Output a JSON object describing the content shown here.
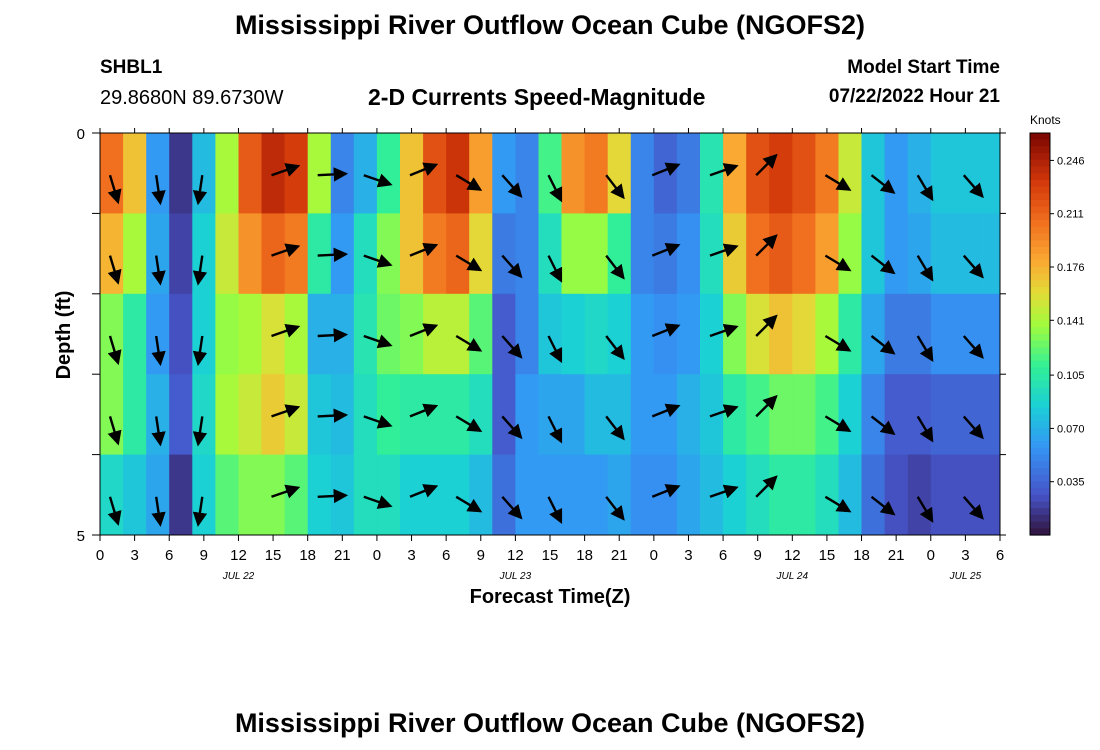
{
  "title": "Mississippi River Outflow Ocean Cube (NGOFS2)",
  "station": "SHBL1",
  "coords": "29.8680N  89.6730W",
  "subtitle": "2-D Currents Speed-Magnitude",
  "model_start_label": "Model Start Time",
  "model_start_value": "07/22/2022 Hour 21",
  "chart_data": {
    "type": "heatmap",
    "xlabel": "Forecast Time(Z)",
    "ylabel": "Depth (ft)",
    "ylim": [
      0,
      5
    ],
    "y_ticks": [
      "0",
      "5"
    ],
    "x_tick_labels": [
      "0",
      "3",
      "6",
      "9",
      "12",
      "15",
      "18",
      "21",
      "0",
      "3",
      "6",
      "9",
      "12",
      "15",
      "18",
      "21",
      "0",
      "3",
      "6",
      "9",
      "12",
      "15",
      "18",
      "21",
      "0",
      "3",
      "6"
    ],
    "date_labels": [
      {
        "label": "JUL 22",
        "tick_index": 4
      },
      {
        "label": "JUL 23",
        "tick_index": 12
      },
      {
        "label": "JUL 24",
        "tick_index": 20
      },
      {
        "label": "JUL 25",
        "tick_index": 25
      }
    ],
    "colorbar": {
      "unit": "Knots",
      "ticks": [
        "0.246",
        "0.211",
        "0.176",
        "0.141",
        "0.105",
        "0.070",
        "0.035"
      ],
      "tick_values": [
        0.246,
        0.211,
        0.176,
        0.141,
        0.105,
        0.07,
        0.035
      ],
      "range": [
        0.0,
        0.264
      ]
    },
    "hours": [
      0,
      2,
      4,
      6,
      8,
      10,
      12,
      14,
      16,
      18,
      20,
      22,
      24,
      26,
      28,
      30,
      32,
      34,
      36,
      38,
      40,
      42,
      44,
      46,
      48,
      50,
      52,
      54,
      56,
      58,
      60,
      62,
      64,
      66,
      68,
      70,
      72,
      74,
      76,
      78
    ],
    "depth_layers": 5,
    "speed": [
      [
        0.22,
        0.19,
        0.19,
        0.16,
        0.14,
        0.12,
        0.14,
        0.12,
        0.1,
        0.08
      ],
      [
        0.18,
        0.16,
        0.15,
        0.13,
        0.11,
        0.1,
        0.11,
        0.1,
        0.09,
        0.07
      ],
      [
        0.06,
        0.06,
        0.07,
        0.06,
        0.06,
        0.06,
        0.07,
        0.07,
        0.07,
        0.06
      ],
      [
        0.01,
        0.02,
        0.02,
        0.02,
        0.02,
        0.03,
        0.03,
        0.03,
        0.02,
        0.01
      ],
      [
        0.07,
        0.08,
        0.08,
        0.09,
        0.09,
        0.08,
        0.09,
        0.09,
        0.09,
        0.08
      ],
      [
        0.14,
        0.14,
        0.15,
        0.15,
        0.14,
        0.13,
        0.14,
        0.14,
        0.13,
        0.11
      ],
      [
        0.22,
        0.21,
        0.2,
        0.18,
        0.15,
        0.13,
        0.15,
        0.15,
        0.14,
        0.12
      ],
      [
        0.25,
        0.23,
        0.22,
        0.2,
        0.17,
        0.14,
        0.17,
        0.16,
        0.14,
        0.12
      ],
      [
        0.24,
        0.22,
        0.21,
        0.19,
        0.16,
        0.12,
        0.15,
        0.15,
        0.13,
        0.11
      ],
      [
        0.16,
        0.12,
        0.11,
        0.1,
        0.08,
        0.06,
        0.07,
        0.09,
        0.09,
        0.08
      ],
      [
        0.05,
        0.05,
        0.06,
        0.06,
        0.07,
        0.07,
        0.07,
        0.08,
        0.08,
        0.08
      ],
      [
        0.06,
        0.08,
        0.09,
        0.1,
        0.1,
        0.1,
        0.09,
        0.1,
        0.1,
        0.09
      ],
      [
        0.1,
        0.12,
        0.13,
        0.13,
        0.13,
        0.12,
        0.11,
        0.11,
        0.1,
        0.09
      ],
      [
        0.16,
        0.18,
        0.18,
        0.16,
        0.14,
        0.12,
        0.11,
        0.1,
        0.09,
        0.08
      ],
      [
        0.22,
        0.22,
        0.21,
        0.19,
        0.16,
        0.13,
        0.11,
        0.1,
        0.09,
        0.08
      ],
      [
        0.24,
        0.23,
        0.22,
        0.2,
        0.16,
        0.13,
        0.11,
        0.1,
        0.09,
        0.08
      ],
      [
        0.19,
        0.18,
        0.17,
        0.15,
        0.13,
        0.11,
        0.1,
        0.09,
        0.08,
        0.07
      ],
      [
        0.06,
        0.06,
        0.05,
        0.04,
        0.03,
        0.03,
        0.03,
        0.03,
        0.04,
        0.04
      ],
      [
        0.05,
        0.05,
        0.05,
        0.05,
        0.05,
        0.05,
        0.06,
        0.06,
        0.06,
        0.06
      ],
      [
        0.12,
        0.11,
        0.1,
        0.09,
        0.08,
        0.08,
        0.07,
        0.06,
        0.06,
        0.06
      ],
      [
        0.2,
        0.18,
        0.15,
        0.12,
        0.09,
        0.08,
        0.07,
        0.06,
        0.06,
        0.06
      ],
      [
        0.21,
        0.19,
        0.15,
        0.12,
        0.1,
        0.08,
        0.08,
        0.07,
        0.06,
        0.06
      ],
      [
        0.17,
        0.15,
        0.12,
        0.1,
        0.09,
        0.08,
        0.08,
        0.07,
        0.07,
        0.06
      ],
      [
        0.05,
        0.05,
        0.05,
        0.05,
        0.06,
        0.06,
        0.06,
        0.06,
        0.06,
        0.05
      ],
      [
        0.03,
        0.04,
        0.04,
        0.05,
        0.05,
        0.06,
        0.06,
        0.06,
        0.06,
        0.05
      ],
      [
        0.04,
        0.05,
        0.05,
        0.06,
        0.06,
        0.06,
        0.07,
        0.07,
        0.07,
        0.06
      ],
      [
        0.1,
        0.1,
        0.1,
        0.09,
        0.09,
        0.08,
        0.08,
        0.08,
        0.08,
        0.07
      ],
      [
        0.18,
        0.18,
        0.17,
        0.16,
        0.14,
        0.12,
        0.11,
        0.1,
        0.09,
        0.08
      ],
      [
        0.22,
        0.22,
        0.21,
        0.2,
        0.17,
        0.14,
        0.12,
        0.11,
        0.1,
        0.09
      ],
      [
        0.23,
        0.23,
        0.22,
        0.21,
        0.18,
        0.16,
        0.13,
        0.12,
        0.11,
        0.1
      ],
      [
        0.22,
        0.22,
        0.21,
        0.2,
        0.17,
        0.15,
        0.13,
        0.12,
        0.11,
        0.1
      ],
      [
        0.2,
        0.2,
        0.19,
        0.18,
        0.15,
        0.13,
        0.12,
        0.11,
        0.1,
        0.09
      ],
      [
        0.15,
        0.15,
        0.14,
        0.13,
        0.11,
        0.1,
        0.09,
        0.08,
        0.08,
        0.07
      ],
      [
        0.08,
        0.08,
        0.08,
        0.08,
        0.07,
        0.06,
        0.05,
        0.05,
        0.04,
        0.04
      ],
      [
        0.06,
        0.06,
        0.06,
        0.06,
        0.05,
        0.04,
        0.03,
        0.03,
        0.03,
        0.02
      ],
      [
        0.07,
        0.07,
        0.07,
        0.06,
        0.05,
        0.04,
        0.03,
        0.03,
        0.02,
        0.02
      ],
      [
        0.08,
        0.08,
        0.08,
        0.07,
        0.06,
        0.05,
        0.04,
        0.03,
        0.03,
        0.02
      ],
      [
        0.08,
        0.08,
        0.08,
        0.07,
        0.06,
        0.05,
        0.04,
        0.03,
        0.03,
        0.02
      ],
      [
        0.08,
        0.08,
        0.08,
        0.07,
        0.06,
        0.05,
        0.04,
        0.03,
        0.03,
        0.02
      ],
      [
        0.08,
        0.08,
        0.08,
        0.07,
        0.06,
        0.05,
        0.04,
        0.03,
        0.03,
        0.02
      ]
    ],
    "arrows": [
      {
        "hour": 0,
        "dx": 0.3,
        "dy": 1
      },
      {
        "hour": 4,
        "dx": 0.15,
        "dy": 1
      },
      {
        "hour": 8,
        "dx": -0.15,
        "dy": 1
      },
      {
        "hour": 14,
        "dx": 1,
        "dy": -0.35
      },
      {
        "hour": 18,
        "dx": 1,
        "dy": -0.05
      },
      {
        "hour": 22,
        "dx": 1,
        "dy": 0.35
      },
      {
        "hour": 26,
        "dx": 1,
        "dy": -0.4
      },
      {
        "hour": 30,
        "dx": 1,
        "dy": 0.6
      },
      {
        "hour": 34,
        "dx": 0.8,
        "dy": 0.9
      },
      {
        "hour": 38,
        "dx": 0.5,
        "dy": 1
      },
      {
        "hour": 43,
        "dx": 0.7,
        "dy": 0.9
      },
      {
        "hour": 47,
        "dx": 1,
        "dy": -0.4
      },
      {
        "hour": 52,
        "dx": 1,
        "dy": -0.35
      },
      {
        "hour": 56,
        "dx": 0.8,
        "dy": -0.8
      },
      {
        "hour": 62,
        "dx": 1,
        "dy": 0.6
      },
      {
        "hour": 66,
        "dx": 0.9,
        "dy": 0.7
      },
      {
        "hour": 70,
        "dx": 0.6,
        "dy": 1
      },
      {
        "hour": 74,
        "dx": 0.7,
        "dy": 0.8
      }
    ]
  }
}
